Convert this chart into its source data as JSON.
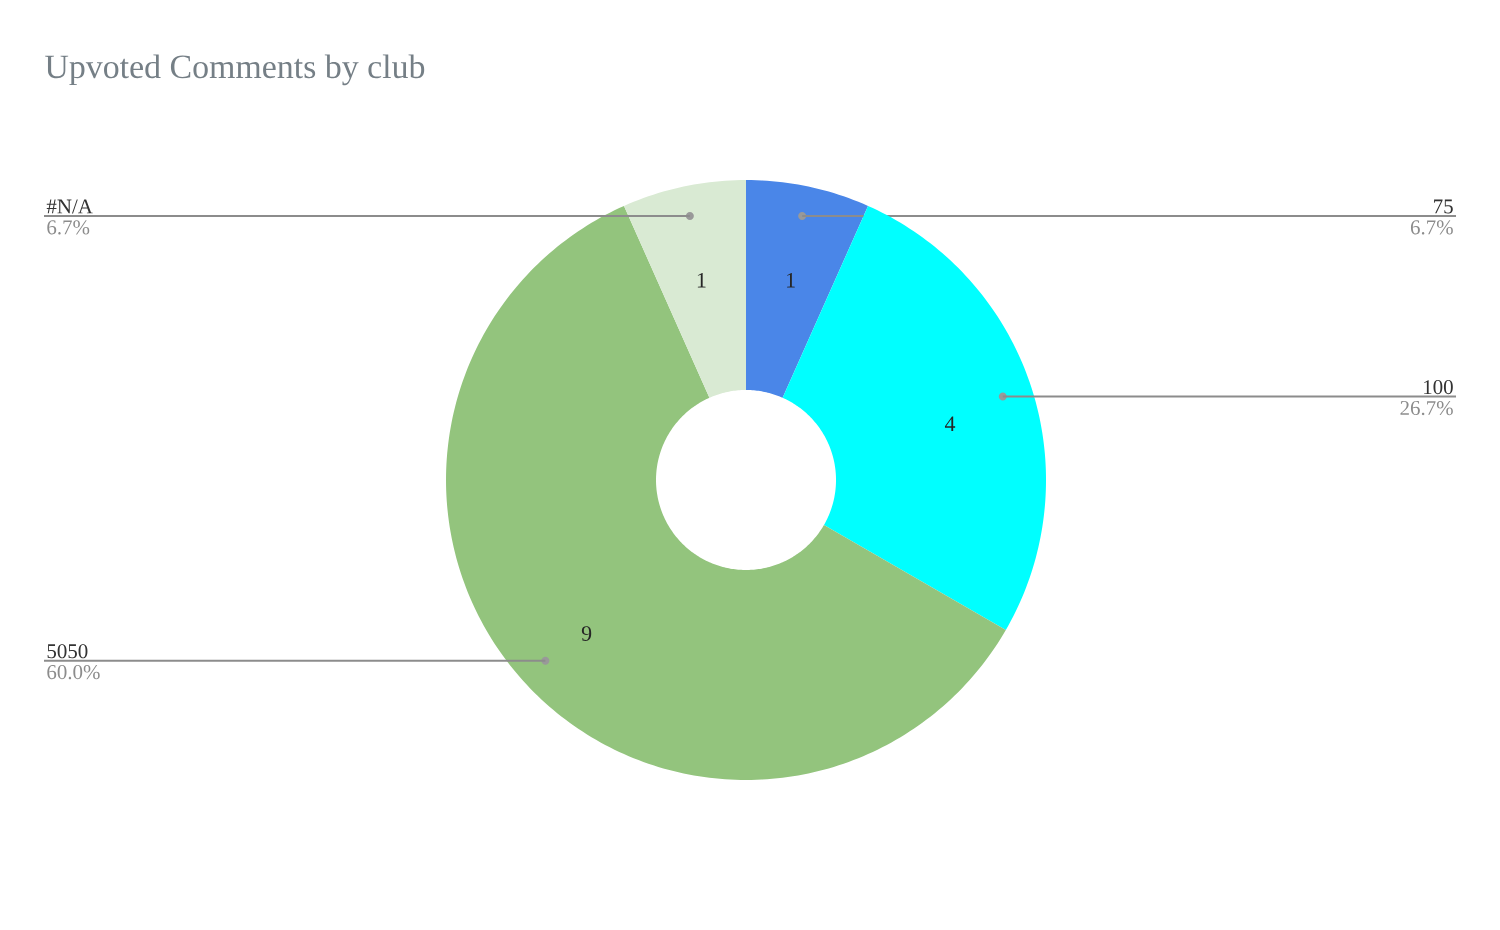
{
  "chart_data": {
    "type": "donut",
    "title": "Upvoted Comments by club",
    "categories": [
      "75",
      "100",
      "5050",
      "#N/A"
    ],
    "values": [
      1,
      4,
      9,
      1
    ],
    "colors": [
      "#4a86e8",
      "#00ffff",
      "#93c47d",
      "#d9ead3"
    ],
    "data_labels": true,
    "annotations": [
      "6.7%",
      "26.7%",
      "60.0%",
      "6.7%"
    ]
  }
}
